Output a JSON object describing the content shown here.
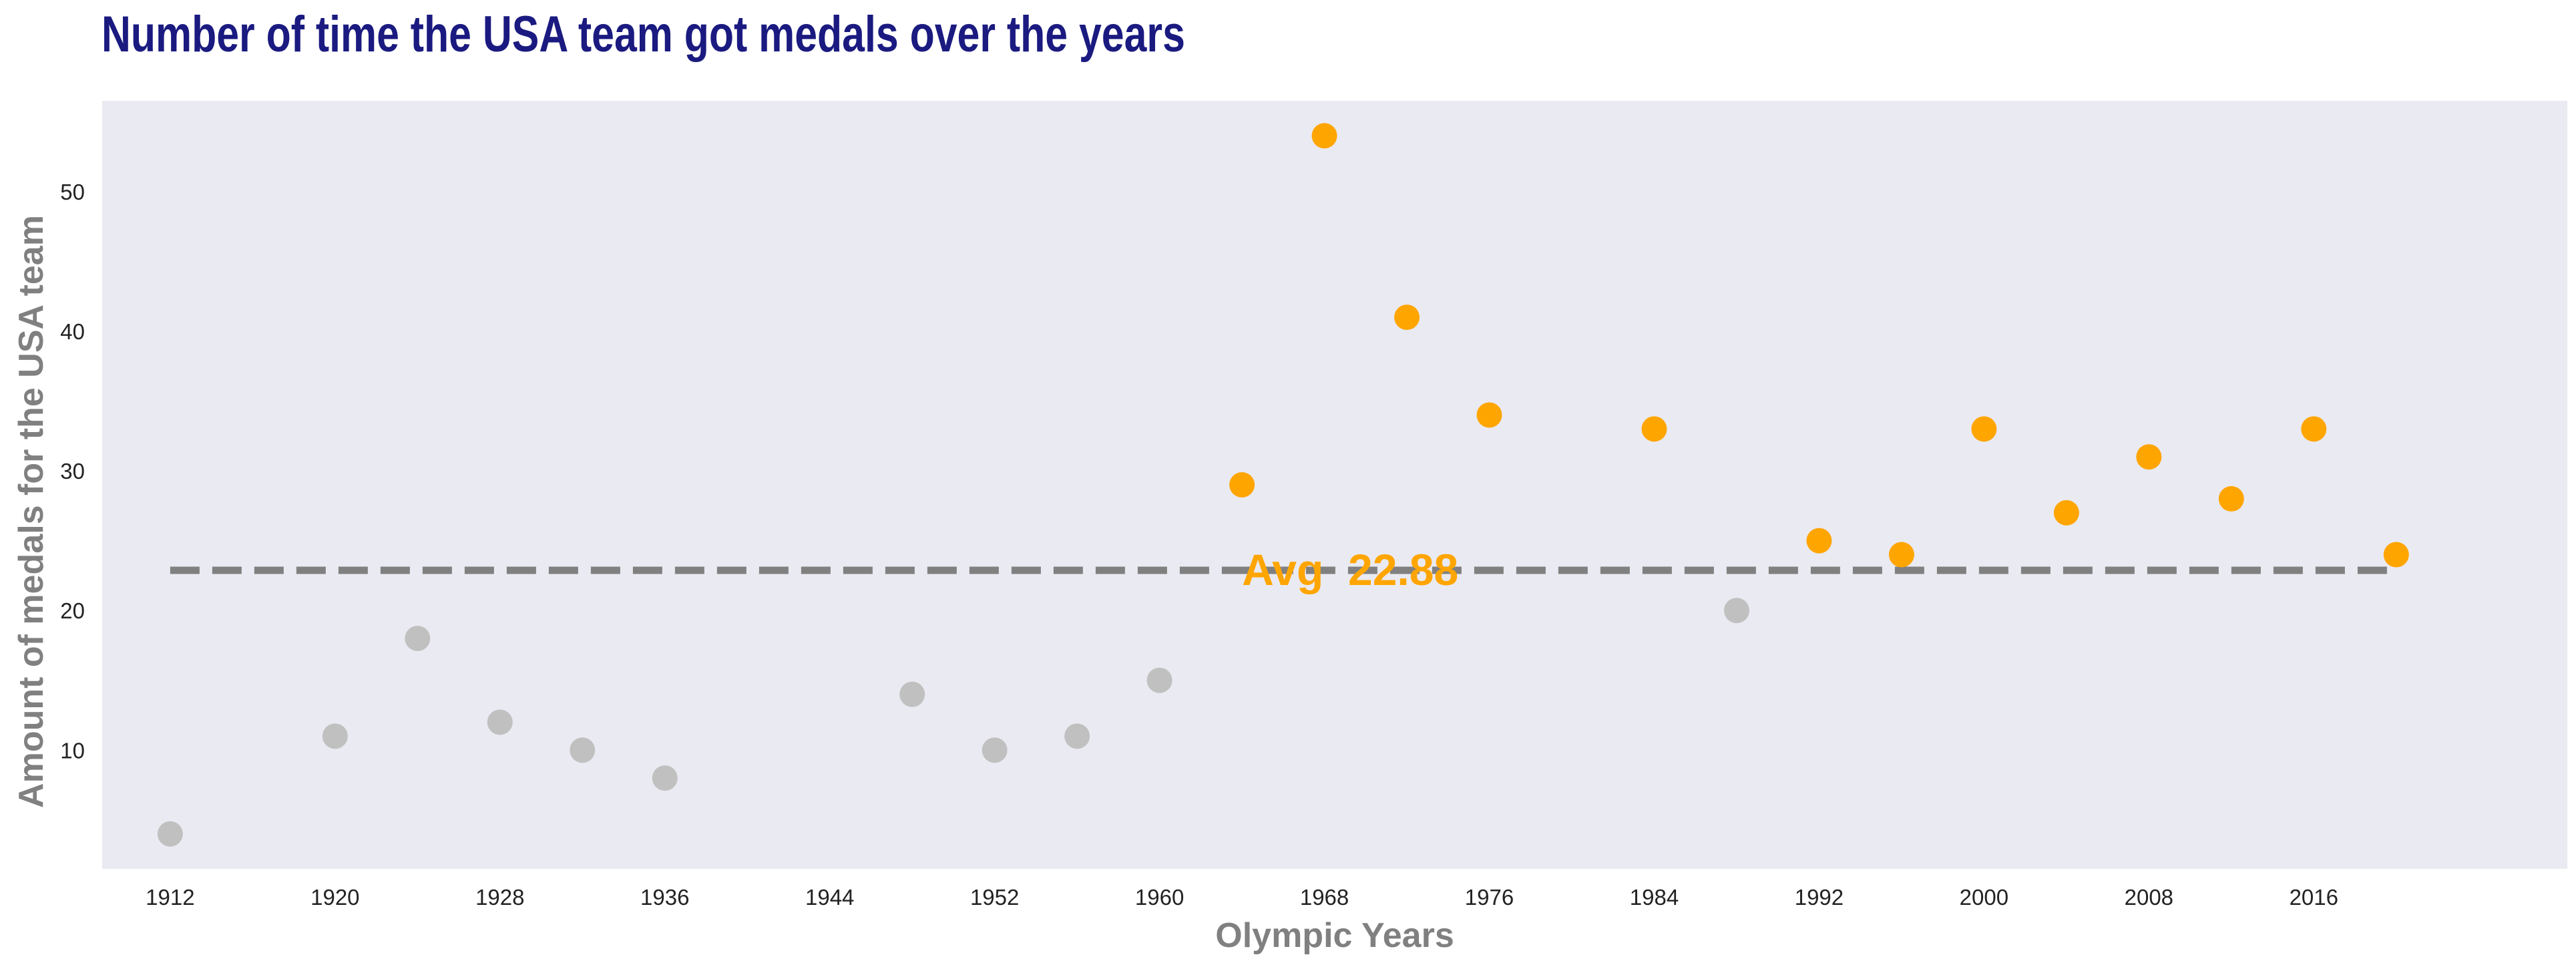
{
  "chart_data": {
    "type": "scatter",
    "title": "Number of time the USA team got medals over the years",
    "xlabel": "Olympic Years",
    "ylabel": "Amount of medals for the USA team",
    "xlim": [
      1908.7,
      2028.3
    ],
    "ylim": [
      1.5,
      56.5
    ],
    "xticks": [
      1912,
      1920,
      1928,
      1936,
      1944,
      1952,
      1960,
      1968,
      1976,
      1984,
      1992,
      2000,
      2008,
      2016
    ],
    "yticks": [
      10,
      20,
      30,
      40,
      50
    ],
    "grid": false,
    "points": [
      {
        "x": 1912,
        "y": 4
      },
      {
        "x": 1920,
        "y": 11
      },
      {
        "x": 1924,
        "y": 18
      },
      {
        "x": 1928,
        "y": 12
      },
      {
        "x": 1932,
        "y": 10
      },
      {
        "x": 1936,
        "y": 8
      },
      {
        "x": 1948,
        "y": 14
      },
      {
        "x": 1952,
        "y": 10
      },
      {
        "x": 1956,
        "y": 11
      },
      {
        "x": 1960,
        "y": 15
      },
      {
        "x": 1964,
        "y": 29
      },
      {
        "x": 1968,
        "y": 54
      },
      {
        "x": 1972,
        "y": 41
      },
      {
        "x": 1976,
        "y": 34
      },
      {
        "x": 1984,
        "y": 33
      },
      {
        "x": 1988,
        "y": 20
      },
      {
        "x": 1992,
        "y": 25
      },
      {
        "x": 1996,
        "y": 24
      },
      {
        "x": 2000,
        "y": 33
      },
      {
        "x": 2004,
        "y": 27
      },
      {
        "x": 2008,
        "y": 31
      },
      {
        "x": 2012,
        "y": 28
      },
      {
        "x": 2016,
        "y": 33
      },
      {
        "x": 2020,
        "y": 24
      }
    ],
    "average": {
      "label": "Avg  22.88",
      "value": 22.88,
      "x_start": 1912,
      "x_end": 2020
    },
    "colors": {
      "above_average": "#FFA500",
      "below_average": "#C0C0C0",
      "average_line": "#808080",
      "plot_background": "#EAEAF2",
      "title": "#1A1A80",
      "axis_label": "#808080"
    }
  }
}
